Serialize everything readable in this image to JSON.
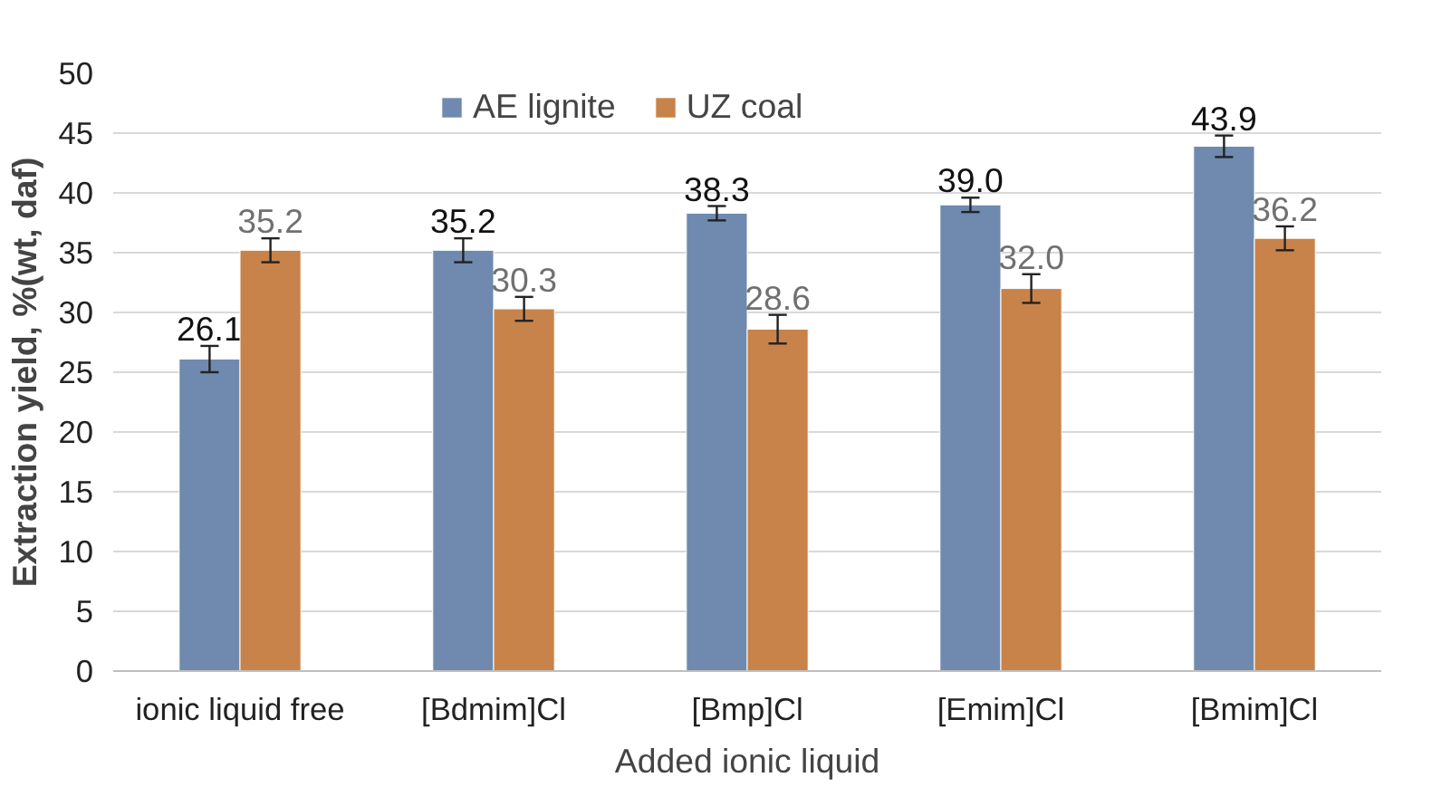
{
  "chart_data": {
    "type": "bar",
    "xlabel": "Added ionic liquid",
    "ylabel": "Extraction yield, %(wt, daf)",
    "categories": [
      "ionic liquid free",
      "[Bdmim]Cl",
      "[Bmp]Cl",
      "[Emim]Cl",
      "[Bmim]Cl"
    ],
    "series": [
      {
        "name": "AE lignite",
        "color": "#6f8aae",
        "values": [
          26.1,
          35.2,
          38.3,
          39.0,
          43.9
        ],
        "errors": [
          1.1,
          1.0,
          0.6,
          0.6,
          0.9
        ],
        "value_labels": [
          "26.1",
          "35.2",
          "38.3",
          "39.0",
          "43.9"
        ]
      },
      {
        "name": "UZ coal",
        "color": "#c8834a",
        "values": [
          35.2,
          30.3,
          28.6,
          32.0,
          36.2
        ],
        "errors": [
          1.0,
          1.0,
          1.2,
          1.2,
          1.0
        ],
        "value_labels": [
          "35.2",
          "30.3",
          "28.6",
          "32.0",
          "36.2"
        ]
      }
    ],
    "ylim": [
      0,
      50
    ],
    "yticks": [
      0,
      5,
      10,
      15,
      20,
      25,
      30,
      35,
      40,
      45,
      50
    ],
    "grid": "y",
    "legend": "top"
  }
}
